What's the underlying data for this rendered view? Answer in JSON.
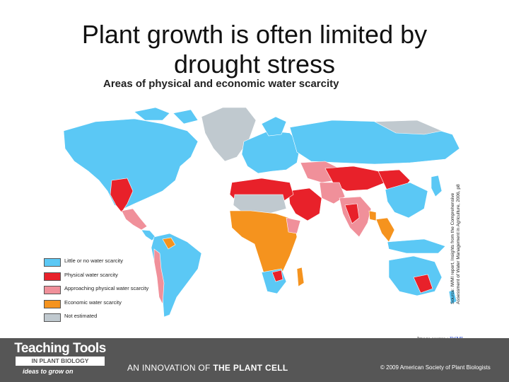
{
  "slide": {
    "title_line1": "Plant growth is often limited by",
    "title_line2": "drought stress",
    "image_source_prefix": "Image source : ",
    "image_source_link": "IWMI"
  },
  "map": {
    "title": "Areas of physical and economic water scarcity",
    "legend": [
      {
        "label": "Little or no water scarcity",
        "color": "#5bc8f5"
      },
      {
        "label": "Physical water scarcity",
        "color": "#e8212a"
      },
      {
        "label": "Approaching physical water scarcity",
        "color": "#f0909a"
      },
      {
        "label": "Economic water scarcity",
        "color": "#f5931e"
      },
      {
        "label": "Not estimated",
        "color": "#c0c9cf"
      }
    ],
    "source_note": "Source: IWMI report, Insights from the Comprehensive Assessment of Water Management in Agriculture, 2006, p8"
  },
  "footer": {
    "logo_line1": "Teaching Tools",
    "logo_line2": "IN PLANT BIOLOGY",
    "logo_line3": "ideas to grow on",
    "innovation_prefix": "AN INNOVATION OF ",
    "innovation_bold": "THE PLANT CELL",
    "copyright": "© 2009 American Society of Plant Biologists"
  }
}
